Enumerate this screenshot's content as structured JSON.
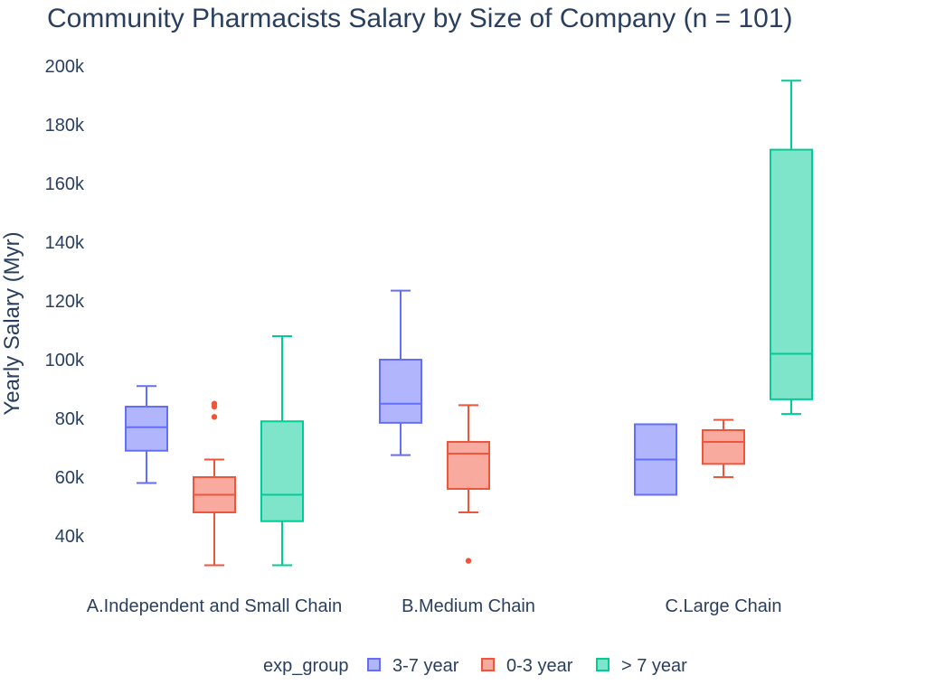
{
  "chart_data": {
    "type": "box",
    "title": "Community Pharmacists Salary by Size of Company (n = 101)",
    "ylabel": "Yearly Salary (Myr)",
    "xlabel": "",
    "ylim": [
      23000,
      205000
    ],
    "yticks": [
      40000,
      60000,
      80000,
      100000,
      120000,
      140000,
      160000,
      180000,
      200000
    ],
    "ytick_labels": [
      "40k",
      "60k",
      "80k",
      "100k",
      "120k",
      "140k",
      "160k",
      "180k",
      "200k"
    ],
    "categories": [
      "A.Independent and Small Chain",
      "B.Medium Chain",
      "C.Large Chain"
    ],
    "legend": {
      "title": "exp_group",
      "position": "bottom-center"
    },
    "series": [
      {
        "name": "3-7 year",
        "color": "#636efa",
        "boxes": [
          {
            "category": "A.Independent and Small Chain",
            "min": 58000,
            "q1": 69000,
            "median": 77000,
            "q3": 84000,
            "max": 91000,
            "outliers": []
          },
          {
            "category": "B.Medium Chain",
            "min": 67500,
            "q1": 78500,
            "median": 85000,
            "q3": 100000,
            "max": 123500,
            "outliers": []
          },
          {
            "category": "C.Large Chain",
            "min": 54000,
            "q1": 54000,
            "median": 66000,
            "q3": 78000,
            "max": 78000,
            "outliers": []
          }
        ]
      },
      {
        "name": "0-3 year",
        "color": "#ef553b",
        "boxes": [
          {
            "category": "A.Independent and Small Chain",
            "min": 30000,
            "q1": 48000,
            "median": 54000,
            "q3": 60000,
            "max": 66000,
            "outliers": [
              80500,
              84000,
              85000
            ]
          },
          {
            "category": "B.Medium Chain",
            "min": 48000,
            "q1": 56000,
            "median": 68000,
            "q3": 72000,
            "max": 84500,
            "outliers": [
              31500
            ]
          },
          {
            "category": "C.Large Chain",
            "min": 60000,
            "q1": 64500,
            "median": 72000,
            "q3": 76000,
            "max": 79500,
            "outliers": []
          }
        ]
      },
      {
        "name": "> 7 year",
        "color": "#00cc96",
        "boxes": [
          {
            "category": "A.Independent and Small Chain",
            "min": 30000,
            "q1": 45000,
            "median": 54000,
            "q3": 79000,
            "max": 108000,
            "outliers": []
          },
          {
            "category": "B.Medium Chain",
            "min": null,
            "q1": null,
            "median": null,
            "q3": null,
            "max": null,
            "outliers": []
          },
          {
            "category": "C.Large Chain",
            "min": 81500,
            "q1": 86500,
            "median": 102000,
            "q3": 171500,
            "max": 195000,
            "outliers": []
          }
        ]
      }
    ]
  }
}
